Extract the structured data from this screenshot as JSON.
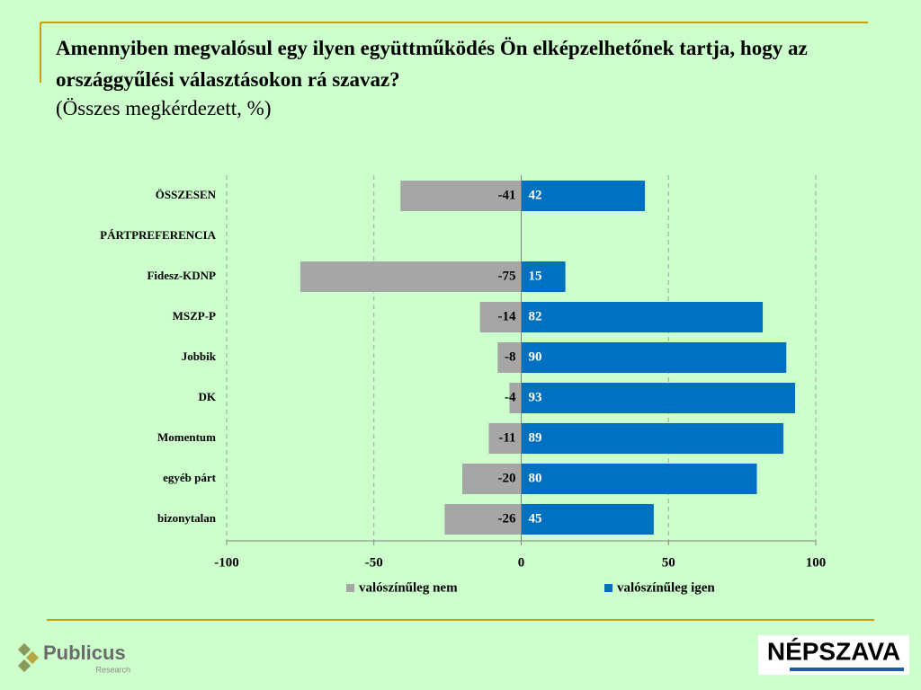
{
  "chart_data": {
    "type": "diverging-bar",
    "title": "Amennyiben megvalósul egy ilyen együttműködés Ön elképzelhetőnek tartja, hogy az országgyűlési választásokon rá szavaz?",
    "subtitle": "(Összes megkérdezett, %)",
    "categories": [
      "ÖSSZESEN",
      "PÁRTPREFERENCIA",
      "Fidesz-KDNP",
      "MSZP-P",
      "Jobbik",
      "DK",
      "Momentum",
      "egyéb párt",
      "bizonytalan"
    ],
    "series": [
      {
        "name": "valószínűleg nem",
        "color": "#a6a6a6",
        "values": [
          -41,
          null,
          -75,
          -14,
          -8,
          -4,
          -11,
          -20,
          -26
        ]
      },
      {
        "name": "valószínűleg igen",
        "color": "#0070c0",
        "values": [
          42,
          null,
          15,
          82,
          90,
          93,
          89,
          80,
          45
        ]
      }
    ],
    "xlim": [
      -100,
      100
    ],
    "xticks": [
      -100,
      -50,
      0,
      50,
      100
    ],
    "grid": true,
    "legend": "bottom"
  },
  "footer": {
    "left_logo": "Publicus",
    "left_logo_sub": "Research",
    "right_logo": "NÉPSZAVA"
  }
}
